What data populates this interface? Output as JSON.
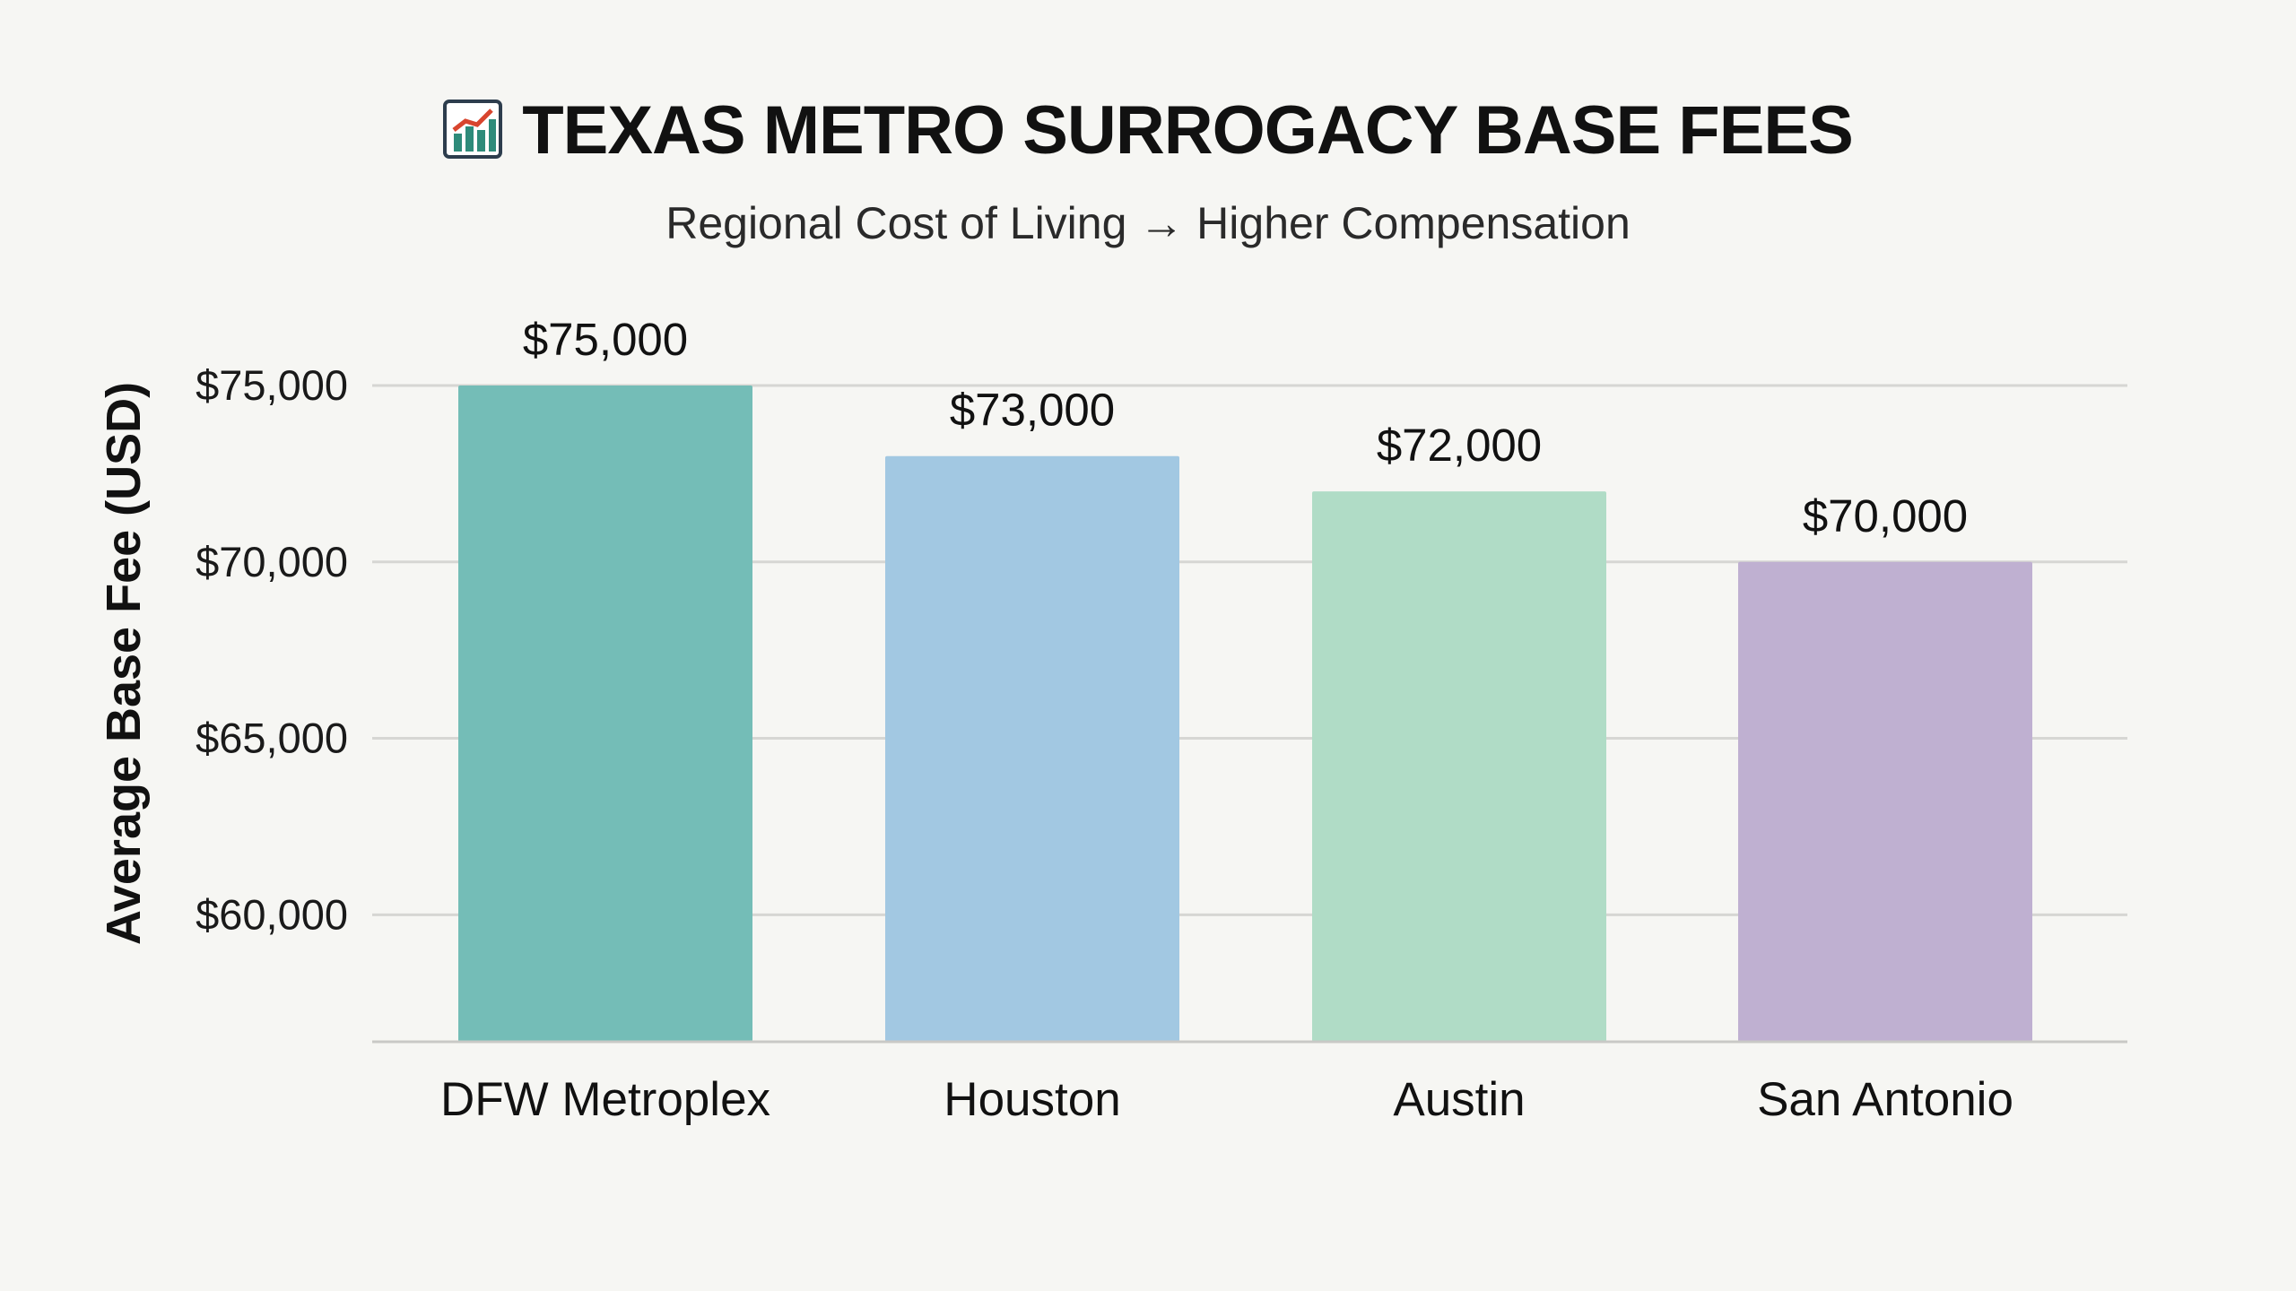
{
  "title": "TEXAS METRO SURROGACY BASE FEES",
  "title_icon": "bar-chart-icon",
  "subtitle": "Regional Cost of Living → Higher Compensation",
  "chart_data": {
    "type": "bar",
    "title": "TEXAS METRO SURROGACY BASE FEES",
    "subtitle": "Regional Cost of Living → Higher Compensation",
    "xlabel": "",
    "ylabel": "Average Base Fee (USD)",
    "categories": [
      "DFW Metroplex",
      "Houston",
      "Austin",
      "San Antonio"
    ],
    "values": [
      75000,
      73000,
      72000,
      70000
    ],
    "data_labels": [
      "$75,000",
      "$73,000",
      "$72,000",
      "$70,000"
    ],
    "colors": [
      "#74bdb7",
      "#a2c8e2",
      "#b0dcc6",
      "#bfb0d1"
    ],
    "yticks": [
      60000,
      65000,
      70000,
      75000
    ],
    "ytick_labels": [
      "$60,000",
      "$65,000",
      "$70,000",
      "$75,000"
    ],
    "ylim": [
      56400,
      75000
    ],
    "grid": true,
    "legend": "none"
  }
}
